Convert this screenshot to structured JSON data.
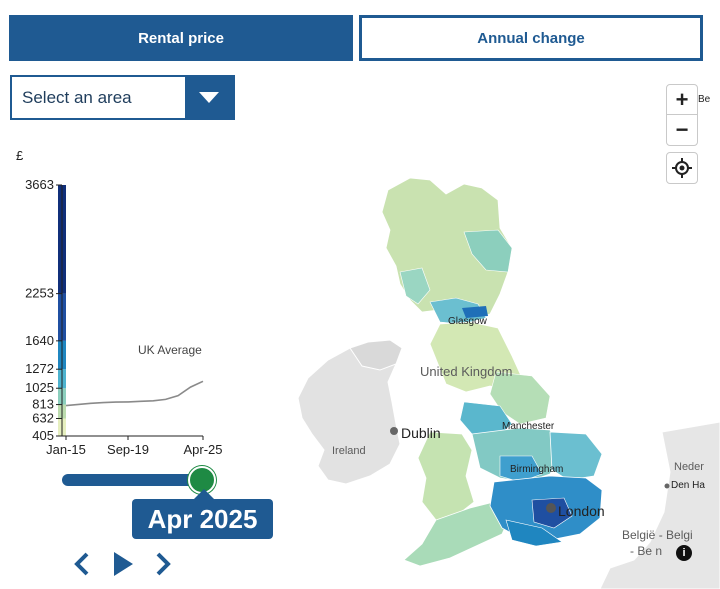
{
  "tabs": {
    "active": "Rental price",
    "inactive": "Annual change"
  },
  "area_select": {
    "placeholder": "Select an area"
  },
  "chart_data": {
    "type": "line",
    "currency_label": "£",
    "ylim": [
      405,
      3663
    ],
    "y_ticks": [
      "3663",
      "2253",
      "1640",
      "1272",
      "1025",
      "813",
      "632",
      "405"
    ],
    "x_ticks": [
      "Jan-15",
      "Sep-19",
      "Apr-25"
    ],
    "legend_colors": [
      "#e6efbf",
      "#bcdcae",
      "#8ccfbd",
      "#4db3cf",
      "#1f86c0",
      "#1f4fa1",
      "#102f7a",
      "#0a1d4f"
    ],
    "series": [
      {
        "name": "UK Average",
        "x": [
          "Jan-15",
          "Jan-16",
          "Jan-17",
          "Jan-18",
          "Jan-19",
          "Sep-19",
          "Jan-20",
          "Jan-21",
          "Jan-22",
          "Jan-23",
          "Jan-24",
          "Apr-25"
        ],
        "values": [
          800,
          815,
          830,
          838,
          845,
          848,
          855,
          862,
          880,
          930,
          1040,
          1115
        ]
      }
    ]
  },
  "slider": {
    "date": "Apr 2025",
    "position": 1.0
  },
  "map": {
    "labels": {
      "glasgow": "Glasgow",
      "uk": "United Kingdom",
      "dublin": "Dublin",
      "ireland": "Ireland",
      "manchester": "Manchester",
      "birmingham": "Birmingham",
      "london": "London",
      "belgie": "België - Belgi",
      "belgie2": "- Be n",
      "neder": "Neder",
      "denha": "Den Ha",
      "be": "Be"
    }
  },
  "map_controls": {
    "zoom_in": "+",
    "zoom_out": "−",
    "info": "i"
  }
}
